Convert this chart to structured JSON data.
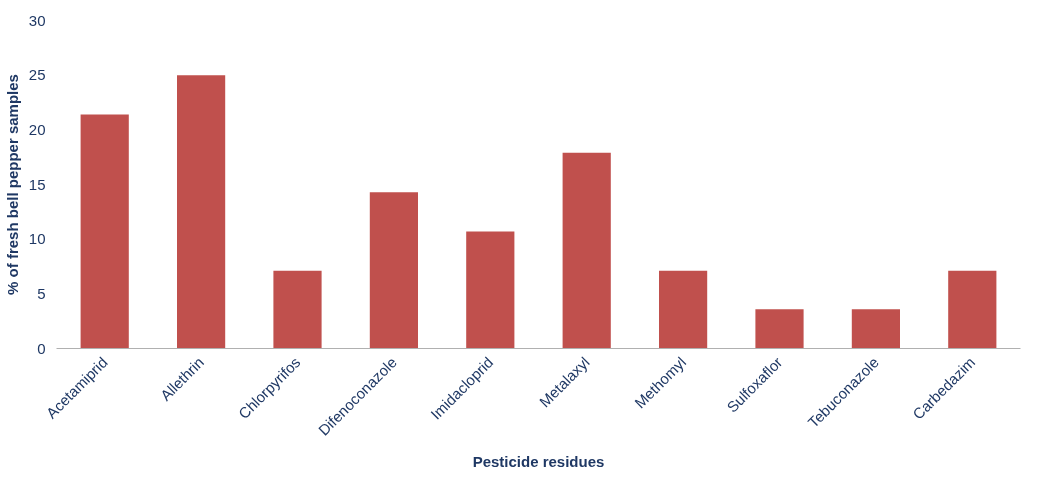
{
  "chart_data": {
    "type": "bar",
    "xlabel": "Pesticide residues",
    "ylabel": "% of fresh bell pepper samples",
    "categories": [
      "Acetamiprid",
      "Allethrin",
      "Chlorpyrifos",
      "Difenoconazole",
      "Imidacloprid",
      "Metalaxyl",
      "Methomyl",
      "Sulfoxaflor",
      "Tebuconazole",
      "Carbedazim"
    ],
    "values": [
      21.4,
      25.0,
      7.1,
      14.3,
      10.7,
      17.9,
      7.1,
      3.6,
      3.6,
      7.1
    ],
    "color": "#c0504d",
    "ylim": [
      0,
      30
    ],
    "yticks": [
      0,
      5,
      10,
      15,
      20,
      25,
      30
    ],
    "grid": false
  }
}
